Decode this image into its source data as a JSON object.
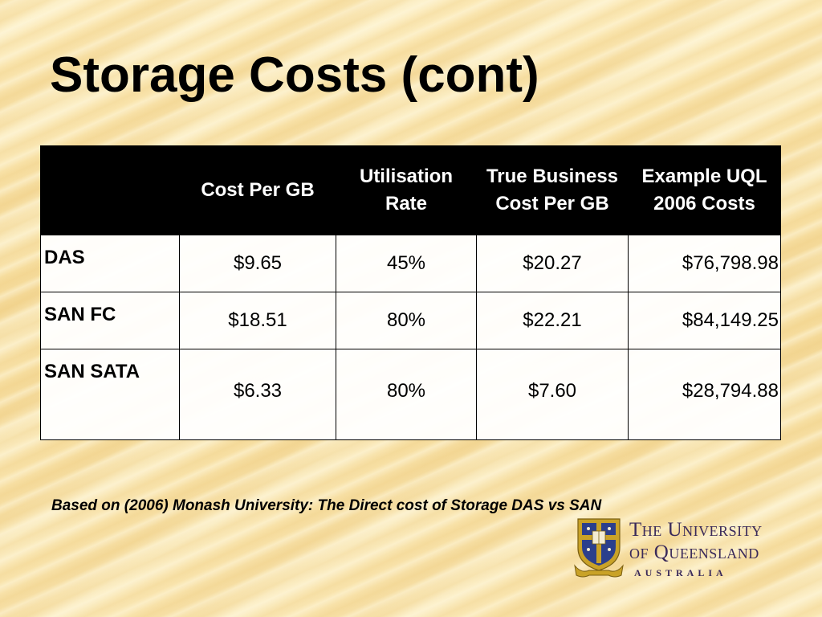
{
  "slide": {
    "title": "Storage Costs (cont)",
    "source_note": "Based on (2006) Monash University: The Direct cost of Storage DAS vs SAN"
  },
  "table": {
    "headers": [
      "",
      "Cost Per GB",
      "Utilisation Rate",
      "True Business Cost Per GB",
      "Example UQL 2006 Costs"
    ],
    "rows": [
      {
        "label": "DAS",
        "cost_per_gb": "$9.65",
        "utilisation_rate": "45%",
        "true_cost_per_gb": "$20.27",
        "example_costs": "$76,798.98"
      },
      {
        "label": "SAN FC",
        "cost_per_gb": "$18.51",
        "utilisation_rate": "80%",
        "true_cost_per_gb": "$22.21",
        "example_costs": "$84,149.25"
      },
      {
        "label": "SAN SATA",
        "cost_per_gb": "$6.33",
        "utilisation_rate": "80%",
        "true_cost_per_gb": "$7.60",
        "example_costs": "$28,794.88"
      }
    ]
  },
  "logo": {
    "line1": "The University",
    "line2": "of Queensland",
    "country": "AUSTRALIA",
    "icon": "university-crest-icon"
  },
  "colors": {
    "header_bg": "#000000",
    "header_text": "#ffffff",
    "cell_bg": "#ffffff",
    "crest_gold": "#c9a227",
    "crest_blue": "#2b3f8c",
    "logo_text": "#3a2a5a"
  }
}
